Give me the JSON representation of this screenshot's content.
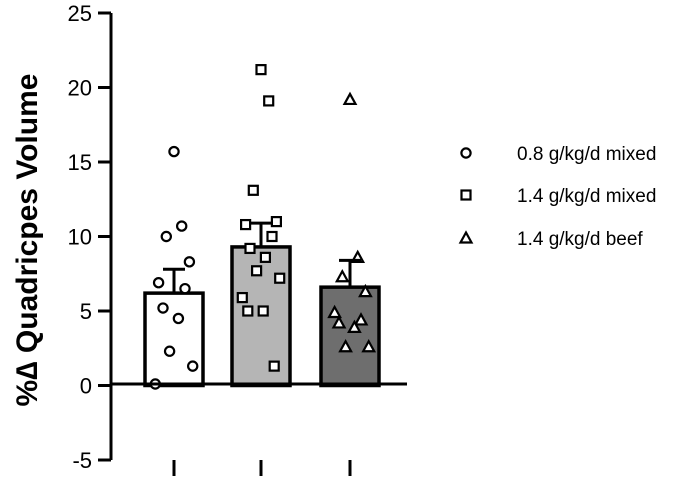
{
  "chart_data": {
    "type": "bar",
    "title": "",
    "xlabel": "",
    "ylabel": "%∆ Quadricpes Volume",
    "ylim": [
      -5,
      25
    ],
    "yticks": [
      -5,
      0,
      5,
      10,
      15,
      20,
      25
    ],
    "grid": false,
    "legend_position": "right",
    "categories": [
      "",
      "",
      ""
    ],
    "series": [
      {
        "name": "0.8 g/kg/d mixed",
        "marker": "circle",
        "bar_color": "#ffffff",
        "mean": 6.2,
        "sem": 1.6,
        "points": [
          15.7,
          10.7,
          10.0,
          8.3,
          6.9,
          6.5,
          5.2,
          4.5,
          2.3,
          1.3,
          0.1
        ]
      },
      {
        "name": "1.4 g/kg/d mixed",
        "marker": "square",
        "bar_color": "#b5b5b5",
        "mean": 9.3,
        "sem": 1.6,
        "points": [
          21.2,
          19.1,
          13.1,
          11.0,
          10.8,
          10.0,
          9.2,
          8.6,
          7.7,
          7.2,
          5.9,
          5.0,
          5.0,
          1.3
        ]
      },
      {
        "name": "1.4 g/kg/d beef",
        "marker": "triangle",
        "bar_color": "#6e6e6e",
        "mean": 6.6,
        "sem": 1.8,
        "points": [
          19.2,
          8.6,
          7.3,
          6.3,
          4.9,
          4.4,
          4.2,
          3.9,
          2.6,
          2.6
        ]
      }
    ]
  }
}
